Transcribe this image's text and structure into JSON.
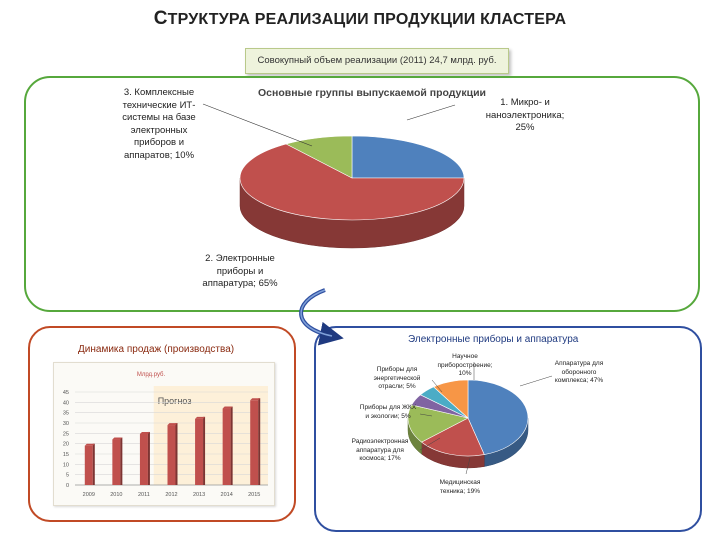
{
  "header": {
    "title_first_letter": "С",
    "title_rest": "ТРУКТУРА РЕАЛИЗАЦИИ ПРОДУКЦИИ КЛАСТЕРА",
    "total_sales": "Совокупный объем реализации (2011) 24,7 млрд. руб."
  },
  "chart_data": [
    {
      "type": "pie",
      "title": "Основные группы выпускаемой продукции",
      "labels": [
        "1. Микро- и наноэлектроника",
        "2. Электронные приборы и аппаратура",
        "3. Комплексные технические ИТ-системы на базе электронных приборов и аппаратов"
      ],
      "values": [
        25,
        65,
        10
      ],
      "colors": [
        "#4f81bd",
        "#c0504d",
        "#9bbb59"
      ],
      "label_texts": [
        [
          "1. Микро- и",
          "наноэлектроника;",
          "25%"
        ],
        [
          "2. Электронные",
          "приборы и",
          "аппаратура; 65%"
        ],
        [
          "3. Комплексные",
          "технические ИТ-",
          "системы на базе",
          "электронных",
          "приборов и",
          "аппаратов; 10%"
        ]
      ]
    },
    {
      "type": "bar",
      "title": "Динамика продаж (производства)",
      "subtitle": "Млрд.руб.",
      "categories": [
        "2009",
        "2010",
        "2011",
        "2012",
        "2013",
        "2014",
        "2015"
      ],
      "values": [
        19,
        22,
        24.7,
        29,
        32,
        37,
        41
      ],
      "ylim": [
        0,
        45
      ],
      "yticks": [
        0,
        5,
        10,
        15,
        20,
        25,
        30,
        35,
        40,
        45
      ],
      "forecast_label": "Прогноз",
      "forecast_from_index": 3,
      "grid": true,
      "color": "#c0504d"
    },
    {
      "type": "pie",
      "title": "Электронные приборы и аппаратура",
      "labels": [
        "Аппаратура для оборонного комплекса",
        "Медицинская техника",
        "Радиоэлектронная аппаратура для космоса",
        "Приборы для ЖКХ и экологии",
        "Приборы для энергетической отрасли",
        "Научное приборостроение"
      ],
      "values": [
        47,
        19,
        17,
        5,
        5,
        10
      ],
      "colors": [
        "#4f81bd",
        "#c0504d",
        "#9bbb59",
        "#8064a2",
        "#4bacc6",
        "#f79646"
      ],
      "label_texts": [
        [
          "Аппаратура для",
          "оборонного",
          "комплекса; 47%"
        ],
        [
          "Медицинская",
          "техника; 19%"
        ],
        [
          "Радиоэлектронная",
          "аппаратура для",
          "космоса; 17%"
        ],
        [
          "Приборы для ЖКХ",
          "и экологии; 5%"
        ],
        [
          "Приборы для",
          "энергетической",
          "отрасли; 5%"
        ],
        [
          "Научное",
          "приборостроение;",
          "10%"
        ]
      ]
    }
  ]
}
